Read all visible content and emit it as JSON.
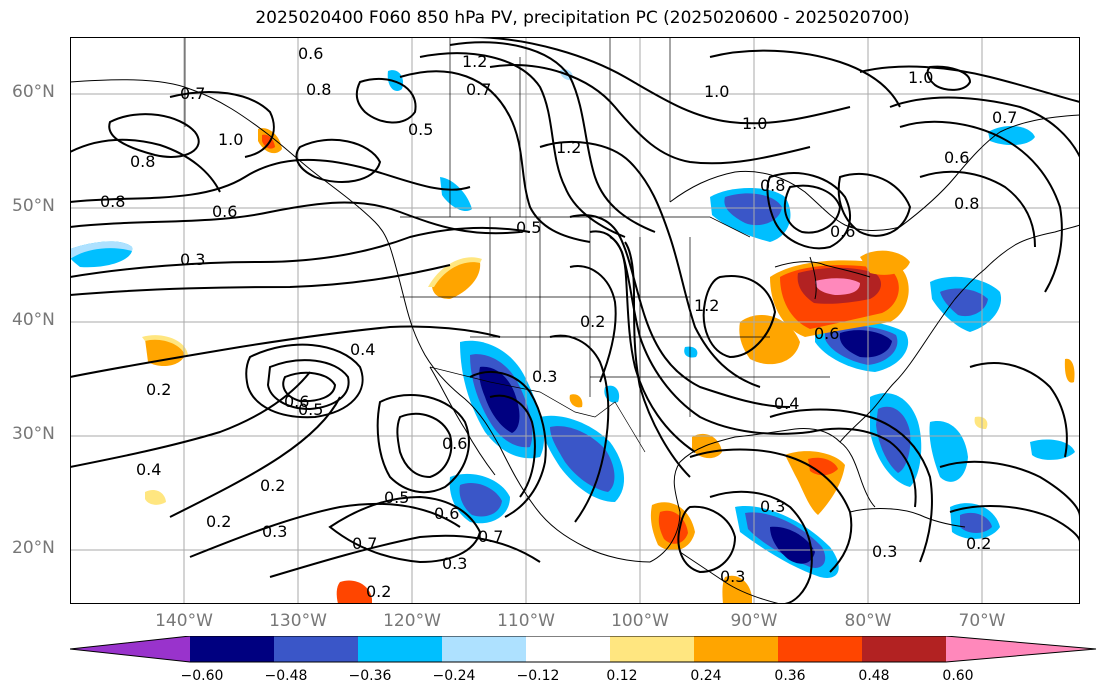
{
  "title": "2025020400 F060 850 hPa PV, precipitation PC (2025020600 - 2025020700)",
  "lat_labels": [
    "60°N",
    "50°N",
    "40°N",
    "30°N",
    "20°N"
  ],
  "lon_labels": [
    "140°W",
    "130°W",
    "120°W",
    "110°W",
    "100°W",
    "90°W",
    "80°W",
    "70°W"
  ],
  "colorbar": {
    "ticks": [
      "−0.60",
      "−0.48",
      "−0.36",
      "−0.24",
      "−0.12",
      "0.12",
      "0.24",
      "0.36",
      "0.48",
      "0.60"
    ],
    "colors": [
      "#9933cc",
      "#000080",
      "#3a56c8",
      "#00bfff",
      "#aee1ff",
      "#ffffff",
      "#ffe680",
      "#ffa500",
      "#ff4500",
      "#b22222",
      "#ff88bb"
    ]
  },
  "contour_labels": [
    "0.6",
    "0.8",
    "0.7",
    "1.0",
    "0.8",
    "0.8",
    "0.6",
    "0.3",
    "0.5",
    "1.2",
    "0.7",
    "1.0",
    "1.0",
    "1.2",
    "1.0",
    "0.7",
    "0.6",
    "0.8",
    "0.5",
    "0.8",
    "0.6",
    "1.2",
    "0.2",
    "0.3",
    "0.4",
    "0.6",
    "0.5",
    "0.2",
    "0.4",
    "0.2",
    "0.2",
    "0.3",
    "0.6",
    "0.5",
    "0.6",
    "0.7",
    "0.7",
    "0.3",
    "0.2",
    "0.3",
    "0.4",
    "0.3",
    "0.3",
    "0.2",
    "0.6"
  ]
}
